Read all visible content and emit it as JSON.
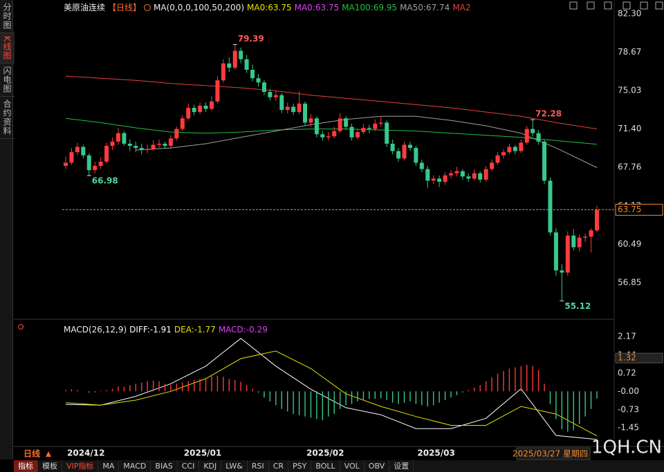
{
  "sidebar_tabs": [
    "分时图",
    "K线图",
    "闪电图",
    "合约资料"
  ],
  "chart_data": [
    {
      "type": "candlestick",
      "title": "美原油连续",
      "period": "【日线】",
      "indicator": "MA(0,0,0,100,50,200)",
      "up_color": "#ff3b3b",
      "down_color": "#36c98b",
      "ylim": [
        53.51,
        82.69
      ],
      "yticks": [
        {
          "value": 82.3,
          "label": "82.30"
        },
        78.67,
        75.03,
        {
          "value": 71.4,
          "label": "71.40"
        },
        67.76,
        64.12,
        60.49,
        56.85
      ],
      "categories": [
        "2024/12",
        null,
        null,
        null,
        null,
        null,
        null,
        null,
        null,
        null,
        null,
        null,
        null,
        null,
        null,
        null,
        null,
        null,
        null,
        null,
        "2025/01",
        null,
        null,
        null,
        null,
        null,
        null,
        null,
        null,
        null,
        null,
        null,
        null,
        null,
        null,
        null,
        null,
        null,
        null,
        null,
        null,
        "2025/02",
        null,
        null,
        null,
        null,
        null,
        null,
        null,
        null,
        null,
        null,
        null,
        null,
        null,
        null,
        null,
        null,
        null,
        null,
        "2025/03",
        null,
        null,
        null,
        null,
        null,
        null,
        null,
        null,
        null,
        null,
        null,
        null,
        null,
        null,
        null,
        null,
        null,
        null,
        null,
        null,
        null,
        null,
        null,
        null,
        null,
        null,
        null,
        null,
        null,
        null,
        null
      ],
      "ohlc": [
        [
          67.9,
          68.8,
          67.6,
          68.2
        ],
        [
          68.2,
          69.6,
          68.0,
          69.2
        ],
        [
          69.2,
          70.1,
          68.9,
          69.7
        ],
        [
          69.7,
          69.9,
          68.6,
          68.9
        ],
        [
          68.9,
          69.1,
          66.98,
          67.5
        ],
        [
          67.5,
          68.3,
          67.2,
          67.9
        ],
        [
          67.9,
          68.7,
          67.6,
          68.3
        ],
        [
          68.3,
          70.1,
          68.1,
          69.8
        ],
        [
          69.8,
          70.6,
          69.4,
          70.2
        ],
        [
          70.2,
          71.5,
          69.9,
          71.0
        ],
        [
          71.0,
          71.2,
          69.8,
          70.0
        ],
        [
          70.0,
          70.4,
          69.3,
          69.8
        ],
        [
          69.8,
          70.2,
          69.2,
          69.6
        ],
        [
          69.6,
          70.0,
          69.0,
          69.4
        ],
        [
          69.4,
          69.9,
          69.1,
          69.5
        ],
        [
          69.5,
          70.3,
          69.3,
          69.9
        ],
        [
          69.9,
          70.4,
          69.6,
          70.0
        ],
        [
          70.0,
          70.2,
          69.5,
          69.8
        ],
        [
          69.8,
          70.8,
          69.6,
          70.5
        ],
        [
          70.5,
          71.6,
          70.3,
          71.4
        ],
        [
          71.4,
          72.7,
          71.2,
          72.4
        ],
        [
          72.4,
          73.8,
          72.2,
          73.4
        ],
        [
          73.4,
          73.7,
          72.7,
          73.0
        ],
        [
          73.0,
          73.9,
          72.8,
          73.6
        ],
        [
          73.6,
          73.9,
          73.0,
          73.3
        ],
        [
          73.3,
          74.5,
          73.1,
          74.0
        ],
        [
          74.0,
          76.4,
          73.8,
          76.0
        ],
        [
          76.0,
          78.0,
          75.8,
          77.6
        ],
        [
          77.6,
          78.2,
          76.8,
          77.2
        ],
        [
          77.2,
          79.39,
          77.0,
          78.8
        ],
        [
          78.8,
          79.1,
          77.6,
          78.0
        ],
        [
          78.0,
          78.4,
          76.7,
          77.0
        ],
        [
          77.0,
          77.5,
          75.9,
          76.2
        ],
        [
          76.2,
          76.6,
          75.4,
          75.8
        ],
        [
          75.8,
          76.0,
          74.6,
          74.9
        ],
        [
          74.9,
          75.2,
          74.1,
          74.4
        ],
        [
          74.4,
          75.0,
          74.1,
          74.6
        ],
        [
          74.6,
          74.8,
          72.9,
          73.2
        ],
        [
          73.2,
          73.9,
          72.9,
          73.5
        ],
        [
          73.5,
          73.8,
          72.7,
          73.0
        ],
        [
          73.0,
          75.0,
          72.8,
          73.8
        ],
        [
          73.8,
          74.0,
          71.7,
          72.0
        ],
        [
          72.0,
          72.8,
          71.6,
          72.4
        ],
        [
          72.4,
          72.6,
          70.6,
          70.9
        ],
        [
          70.9,
          71.2,
          70.3,
          70.6
        ],
        [
          70.6,
          71.1,
          70.3,
          70.7
        ],
        [
          70.7,
          71.6,
          70.5,
          71.2
        ],
        [
          71.2,
          72.9,
          71.0,
          72.4
        ],
        [
          72.4,
          72.6,
          71.3,
          71.6
        ],
        [
          71.6,
          71.9,
          70.3,
          70.6
        ],
        [
          70.6,
          71.4,
          70.4,
          71.1
        ],
        [
          71.1,
          71.9,
          70.9,
          71.5
        ],
        [
          71.5,
          71.8,
          71.0,
          71.4
        ],
        [
          71.4,
          72.3,
          71.2,
          71.9
        ],
        [
          71.9,
          72.6,
          71.6,
          72.0
        ],
        [
          72.0,
          72.2,
          69.7,
          70.0
        ],
        [
          70.0,
          70.4,
          69.0,
          69.3
        ],
        [
          69.3,
          69.6,
          68.3,
          68.6
        ],
        [
          68.6,
          70.2,
          68.4,
          69.9
        ],
        [
          69.9,
          70.2,
          69.3,
          69.6
        ],
        [
          69.6,
          69.8,
          67.9,
          68.2
        ],
        [
          68.2,
          68.5,
          67.3,
          67.6
        ],
        [
          67.6,
          67.9,
          65.8,
          66.5
        ],
        [
          66.5,
          67.0,
          66.2,
          66.7
        ],
        [
          66.7,
          67.0,
          65.9,
          66.4
        ],
        [
          66.4,
          67.3,
          66.1,
          67.0
        ],
        [
          67.0,
          67.5,
          66.7,
          67.2
        ],
        [
          67.2,
          67.8,
          66.9,
          67.4
        ],
        [
          67.4,
          67.6,
          66.6,
          66.9
        ],
        [
          66.9,
          67.2,
          66.4,
          66.7
        ],
        [
          66.7,
          67.6,
          66.5,
          67.2
        ],
        [
          67.2,
          67.4,
          66.3,
          66.6
        ],
        [
          66.6,
          67.9,
          66.4,
          67.6
        ],
        [
          67.6,
          68.5,
          67.4,
          68.2
        ],
        [
          68.2,
          69.2,
          68.0,
          68.9
        ],
        [
          68.9,
          69.5,
          68.6,
          69.2
        ],
        [
          69.2,
          70.0,
          69.0,
          69.7
        ],
        [
          69.7,
          69.9,
          69.0,
          69.3
        ],
        [
          69.3,
          70.4,
          69.1,
          70.1
        ],
        [
          70.1,
          71.7,
          69.9,
          71.4
        ],
        [
          71.4,
          72.28,
          70.7,
          71.0
        ],
        [
          71.0,
          71.3,
          69.9,
          70.2
        ],
        [
          70.2,
          70.4,
          66.2,
          66.5
        ],
        [
          66.5,
          66.8,
          61.3,
          61.6
        ],
        [
          61.6,
          62.0,
          57.5,
          58.0
        ],
        [
          58.0,
          58.6,
          55.12,
          57.8
        ],
        [
          57.8,
          61.7,
          57.5,
          61.3
        ],
        [
          61.3,
          61.9,
          59.9,
          60.2
        ],
        [
          60.2,
          61.4,
          59.8,
          61.1
        ],
        [
          61.1,
          61.5,
          60.7,
          61.2
        ],
        [
          61.2,
          62.0,
          59.7,
          61.8
        ],
        [
          61.8,
          64.12,
          61.6,
          63.75
        ]
      ],
      "series": [
        {
          "name": "MA0:63.75",
          "color": "#e6e600"
        },
        {
          "name": "MA0:63.75",
          "color": "#e040fb"
        },
        {
          "name": "MA100:69.95",
          "color": "#22c03c",
          "x": [
            0,
            6,
            12,
            18,
            24,
            30,
            36,
            42,
            48,
            54,
            60,
            66,
            72,
            78,
            84,
            91
          ],
          "values": [
            72.4,
            72.0,
            71.5,
            71.1,
            71.0,
            71.1,
            71.3,
            71.4,
            71.4,
            71.3,
            71.2,
            71.0,
            70.8,
            70.6,
            70.3,
            69.95
          ]
        },
        {
          "name": "MA50:67.74",
          "color": "#a0a0a0",
          "x": [
            12,
            18,
            24,
            30,
            36,
            42,
            48,
            54,
            60,
            66,
            72,
            78,
            84,
            91
          ],
          "values": [
            69.4,
            69.6,
            70.0,
            70.6,
            71.2,
            71.8,
            72.3,
            72.6,
            72.6,
            72.2,
            71.7,
            71.0,
            69.6,
            67.74
          ]
        },
        {
          "name": "MA2",
          "color": "#e3413c",
          "x": [
            0,
            6,
            12,
            18,
            24,
            30,
            36,
            42,
            48,
            54,
            60,
            66,
            72,
            78,
            84,
            91
          ],
          "values": [
            76.4,
            76.2,
            76.0,
            75.7,
            75.5,
            75.3,
            75.0,
            74.6,
            74.3,
            74.0,
            73.7,
            73.4,
            73.0,
            72.6,
            72.0,
            71.4
          ]
        }
      ],
      "annotations": [
        79.39,
        72.28,
        66.98,
        55.12
      ],
      "last_price": 63.75,
      "cursor_date": "2025/03/27 星期四"
    },
    {
      "type": "macd",
      "title": "MACD(26,12,9)",
      "up_color": "#ff3b3b",
      "down_color": "#36c98b",
      "ylim": [
        -2.16,
        2.64
      ],
      "yticks": [
        2.17,
        1.44,
        0.72,
        {
          "value": 0,
          "label": "-0.00"
        },
        -0.73,
        -1.45
      ],
      "series": [
        {
          "name": "DIFF:-1.91",
          "color": "#ffffff",
          "type": "line",
          "x": [
            0,
            6,
            12,
            18,
            24,
            30,
            36,
            42,
            48,
            54,
            60,
            66,
            72,
            78,
            84,
            91
          ],
          "values": [
            -0.52,
            -0.55,
            -0.2,
            0.3,
            1.0,
            2.1,
            1.0,
            0.08,
            -0.65,
            -0.93,
            -1.48,
            -1.48,
            -1.07,
            0.1,
            -1.75,
            -1.91
          ]
        },
        {
          "name": "DEA:-1.77",
          "color": "#e6e600",
          "type": "line",
          "x": [
            0,
            6,
            12,
            18,
            24,
            30,
            36,
            42,
            48,
            54,
            60,
            66,
            72,
            78,
            84,
            91
          ],
          "values": [
            -0.45,
            -0.55,
            -0.35,
            0.0,
            0.5,
            1.3,
            1.6,
            0.9,
            -0.1,
            -0.6,
            -1.0,
            -1.35,
            -1.35,
            -0.6,
            -0.9,
            -1.77
          ]
        },
        {
          "name": "MACD:-0.29",
          "color": "#e040fb",
          "type": "bar",
          "values": [
            0.05,
            0.08,
            0.06,
            0.0,
            -0.05,
            -0.04,
            0.02,
            0.05,
            0.1,
            0.2,
            0.18,
            0.25,
            0.3,
            0.35,
            0.4,
            0.42,
            0.4,
            0.3,
            0.25,
            0.3,
            0.35,
            0.4,
            0.45,
            0.5,
            0.55,
            0.6,
            0.62,
            0.58,
            0.5,
            0.45,
            0.38,
            0.25,
            0.1,
            -0.05,
            -0.25,
            -0.4,
            -0.55,
            -0.7,
            -0.8,
            -0.9,
            -0.95,
            -1.0,
            -1.05,
            -1.1,
            -1.15,
            -1.0,
            -0.9,
            -0.7,
            -0.55,
            -0.5,
            -0.4,
            -0.35,
            -0.3,
            -0.3,
            -0.28,
            -0.35,
            -0.45,
            -0.5,
            -0.45,
            -0.4,
            -0.5,
            -0.55,
            -0.6,
            -0.55,
            -0.45,
            -0.35,
            -0.25,
            -0.15,
            -0.05,
            0.05,
            0.15,
            0.25,
            0.4,
            0.55,
            0.7,
            0.8,
            0.9,
            0.95,
            1.0,
            1.05,
            1.0,
            0.85,
            0.3,
            -0.5,
            -1.1,
            -1.5,
            -1.6,
            -1.55,
            -1.3,
            -1.0,
            -0.7,
            -0.29
          ]
        }
      ],
      "cursor_value": 1.32
    }
  ],
  "period_label": "日线",
  "toolbar": [
    "指标",
    "模板",
    "VIP指标",
    "MA",
    "MACD",
    "BIAS",
    "CCI",
    "KDJ",
    "LW&",
    "RSI",
    "CR",
    "PSY",
    "BOLL",
    "VOL",
    "OBV",
    "设置"
  ],
  "watermark": "1QH.CN"
}
